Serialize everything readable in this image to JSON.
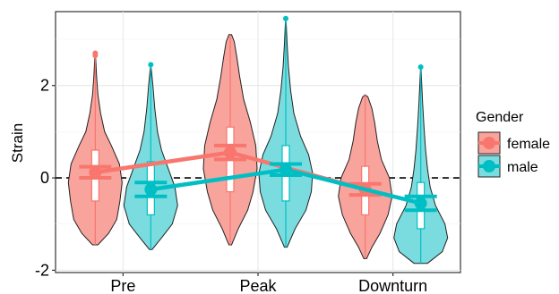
{
  "chart_data": {
    "type": "violin",
    "title": "",
    "xlabel": "",
    "ylabel": "Strain",
    "categories": [
      "Pre",
      "Peak",
      "Downturn"
    ],
    "ylim": [
      -2.05,
      3.6
    ],
    "yticks": [
      -2,
      0,
      2
    ],
    "grid": true,
    "reference_line": {
      "y": 0,
      "style": "dashed"
    },
    "legend": {
      "title": "Gender",
      "position": "right"
    },
    "series": [
      {
        "name": "female",
        "color": "#F8766D",
        "fill": "#F8A39C",
        "groups": [
          {
            "min": -1.45,
            "max": 2.75,
            "q1": -0.5,
            "median": 0.1,
            "q3": 0.6,
            "outliers": [
              2.7,
              2.65
            ],
            "profile": [
              [
                -1.45,
                0.1
              ],
              [
                -1.2,
                0.5
              ],
              [
                -0.9,
                0.8
              ],
              [
                -0.5,
                0.92
              ],
              [
                -0.1,
                1.0
              ],
              [
                0.3,
                0.9
              ],
              [
                0.7,
                0.6
              ],
              [
                1.0,
                0.35
              ],
              [
                1.4,
                0.2
              ],
              [
                1.8,
                0.1
              ],
              [
                2.2,
                0.05
              ],
              [
                2.55,
                0.02
              ]
            ]
          },
          {
            "min": -1.45,
            "max": 3.1,
            "q1": -0.3,
            "median": 0.4,
            "q3": 1.1,
            "outliers": [],
            "profile": [
              [
                -1.45,
                0.05
              ],
              [
                -1.1,
                0.3
              ],
              [
                -0.7,
                0.65
              ],
              [
                -0.3,
                0.85
              ],
              [
                0.2,
                1.0
              ],
              [
                0.7,
                0.95
              ],
              [
                1.2,
                0.75
              ],
              [
                1.7,
                0.5
              ],
              [
                2.2,
                0.35
              ],
              [
                2.6,
                0.25
              ],
              [
                2.95,
                0.15
              ],
              [
                3.1,
                0.05
              ]
            ]
          },
          {
            "min": -1.75,
            "max": 1.8,
            "q1": -0.8,
            "median": -0.25,
            "q3": 0.25,
            "outliers": [],
            "profile": [
              [
                -1.75,
                0.05
              ],
              [
                -1.5,
                0.25
              ],
              [
                -1.2,
                0.55
              ],
              [
                -0.8,
                0.85
              ],
              [
                -0.4,
                1.0
              ],
              [
                0.0,
                0.9
              ],
              [
                0.4,
                0.6
              ],
              [
                0.8,
                0.45
              ],
              [
                1.2,
                0.35
              ],
              [
                1.5,
                0.25
              ],
              [
                1.75,
                0.1
              ]
            ]
          }
        ],
        "means": [
          0.12,
          0.55,
          -0.25
        ],
        "error": [
          0.12,
          0.15,
          0.12
        ]
      },
      {
        "name": "male",
        "color": "#00BFC4",
        "fill": "#7ADCDF",
        "groups": [
          {
            "min": -1.55,
            "max": 2.45,
            "q1": -0.8,
            "median": -0.2,
            "q3": 0.35,
            "outliers": [
              2.45
            ],
            "profile": [
              [
                -1.55,
                0.05
              ],
              [
                -1.3,
                0.4
              ],
              [
                -1.0,
                0.8
              ],
              [
                -0.6,
                1.0
              ],
              [
                -0.2,
                0.9
              ],
              [
                0.2,
                0.65
              ],
              [
                0.6,
                0.4
              ],
              [
                1.0,
                0.25
              ],
              [
                1.5,
                0.15
              ],
              [
                2.0,
                0.08
              ],
              [
                2.3,
                0.03
              ]
            ]
          },
          {
            "min": -1.5,
            "max": 3.45,
            "q1": -0.5,
            "median": 0.25,
            "q3": 0.7,
            "outliers": [
              3.45
            ],
            "profile": [
              [
                -1.5,
                0.05
              ],
              [
                -1.1,
                0.35
              ],
              [
                -0.7,
                0.75
              ],
              [
                -0.3,
                0.95
              ],
              [
                0.1,
                1.0
              ],
              [
                0.5,
                0.85
              ],
              [
                0.9,
                0.55
              ],
              [
                1.4,
                0.3
              ],
              [
                1.9,
                0.18
              ],
              [
                2.4,
                0.1
              ],
              [
                2.9,
                0.05
              ],
              [
                3.3,
                0.02
              ]
            ]
          },
          {
            "min": -1.85,
            "max": 2.4,
            "q1": -1.1,
            "median": -0.65,
            "q3": -0.1,
            "outliers": [
              2.4
            ],
            "profile": [
              [
                -1.85,
                0.25
              ],
              [
                -1.6,
                0.8
              ],
              [
                -1.3,
                1.0
              ],
              [
                -1.0,
                0.9
              ],
              [
                -0.6,
                0.55
              ],
              [
                -0.2,
                0.35
              ],
              [
                0.2,
                0.25
              ],
              [
                0.6,
                0.18
              ],
              [
                1.1,
                0.12
              ],
              [
                1.6,
                0.07
              ],
              [
                2.1,
                0.03
              ],
              [
                2.35,
                0.01
              ]
            ]
          }
        ],
        "means": [
          -0.25,
          0.18,
          -0.55
        ],
        "error": [
          0.15,
          0.12,
          0.15
        ]
      }
    ]
  }
}
